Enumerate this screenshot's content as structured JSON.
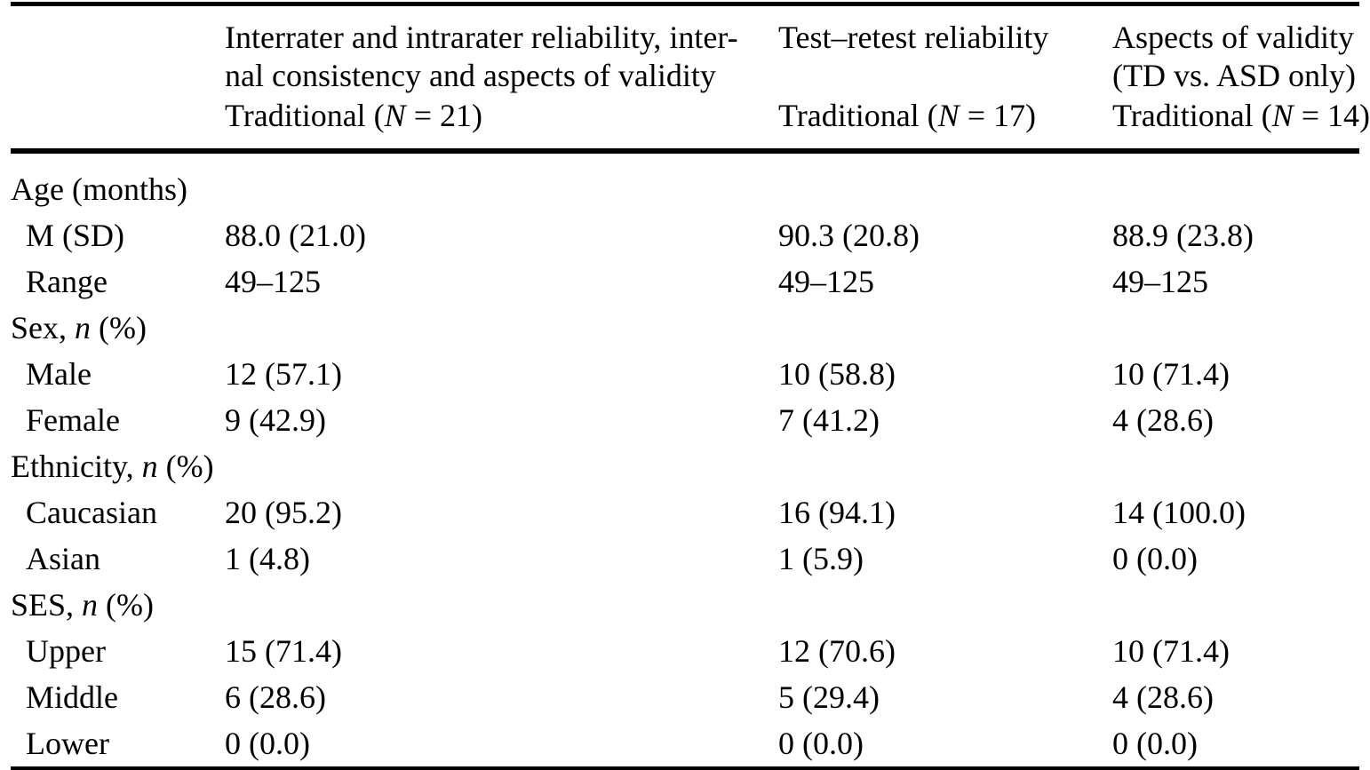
{
  "page": {
    "background": "#ffffff",
    "text_color": "#000000",
    "rule_color": "#000000"
  },
  "table": {
    "column_groups": [
      {
        "label": "Interrater and intrarater reliability, inter-\nnal consistency and aspects of validity"
      },
      {
        "label": "Test–retest reliability"
      },
      {
        "label": "Aspects of validity\n(TD vs. ASD only)"
      }
    ],
    "subheaders": [
      {
        "prefix": "Traditional (",
        "symbol": "N",
        "suffix": " = 21)"
      },
      {
        "prefix": "Traditional (",
        "symbol": "N",
        "suffix": " = 17)"
      },
      {
        "prefix": "Traditional (",
        "symbol": "N",
        "suffix": " = 14)"
      }
    ],
    "rows": [
      {
        "label": {
          "prefix": "Age (months)",
          "symbol": "",
          "suffix": ""
        },
        "values": [
          "",
          "",
          ""
        ]
      },
      {
        "label": {
          "prefix": "M (SD)",
          "symbol": "",
          "suffix": ""
        },
        "values": [
          "88.0 (21.0)",
          "90.3 (20.8)",
          "88.9 (23.8)"
        ]
      },
      {
        "label": {
          "prefix": "Range",
          "symbol": "",
          "suffix": ""
        },
        "values": [
          "49–125",
          "49–125",
          "49–125"
        ]
      },
      {
        "label": {
          "prefix": "Sex, ",
          "symbol": "n",
          "suffix": " (%)"
        },
        "values": [
          "",
          "",
          ""
        ]
      },
      {
        "label": {
          "prefix": "Male",
          "symbol": "",
          "suffix": ""
        },
        "values": [
          "12 (57.1)",
          "10 (58.8)",
          "10 (71.4)"
        ]
      },
      {
        "label": {
          "prefix": "Female",
          "symbol": "",
          "suffix": ""
        },
        "values": [
          "9 (42.9)",
          "7 (41.2)",
          "4 (28.6)"
        ]
      },
      {
        "label": {
          "prefix": "Ethnicity, ",
          "symbol": "n",
          "suffix": " (%)"
        },
        "values": [
          "",
          "",
          ""
        ]
      },
      {
        "label": {
          "prefix": "Caucasian",
          "symbol": "",
          "suffix": ""
        },
        "values": [
          "20 (95.2)",
          "16 (94.1)",
          "14 (100.0)"
        ]
      },
      {
        "label": {
          "prefix": "Asian",
          "symbol": "",
          "suffix": ""
        },
        "values": [
          "1 (4.8)",
          "1 (5.9)",
          "0 (0.0)"
        ]
      },
      {
        "label": {
          "prefix": "SES, ",
          "symbol": "n",
          "suffix": " (%)"
        },
        "values": [
          "",
          "",
          ""
        ]
      },
      {
        "label": {
          "prefix": "Upper",
          "symbol": "",
          "suffix": ""
        },
        "values": [
          "15 (71.4)",
          "12 (70.6)",
          "10 (71.4)"
        ]
      },
      {
        "label": {
          "prefix": "Middle",
          "symbol": "",
          "suffix": ""
        },
        "values": [
          "6 (28.6)",
          "5 (29.4)",
          "4 (28.6)"
        ]
      },
      {
        "label": {
          "prefix": "Lower",
          "symbol": "",
          "suffix": ""
        },
        "values": [
          "0 (0.0)",
          "0 (0.0)",
          "0 (0.0)"
        ]
      }
    ]
  }
}
